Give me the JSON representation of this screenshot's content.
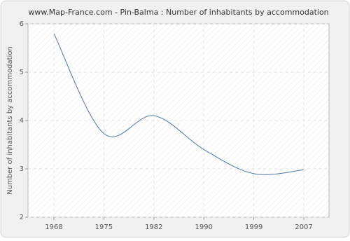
{
  "chart_data": {
    "type": "line",
    "title": "www.Map-France.com - Pin-Balma : Number of inhabitants by accommodation",
    "y_label": "Number of inhabitants by accommodation",
    "categories": [
      "1968",
      "1975",
      "1982",
      "1990",
      "1999",
      "2007"
    ],
    "values": [
      5.8,
      3.73,
      4.1,
      3.4,
      2.9,
      2.98
    ],
    "color": "#4a76a8",
    "ylim": [
      2,
      6
    ],
    "yticks": [
      2,
      3,
      4,
      5,
      6
    ],
    "grid": true,
    "smooth": true
  }
}
